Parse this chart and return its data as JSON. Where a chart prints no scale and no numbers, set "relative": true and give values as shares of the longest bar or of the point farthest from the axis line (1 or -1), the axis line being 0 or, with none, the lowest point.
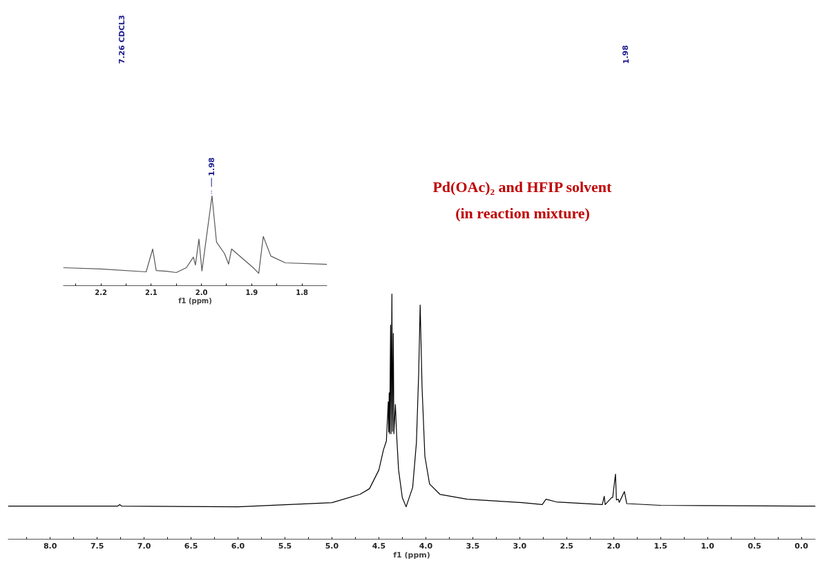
{
  "chart_data": [
    {
      "type": "line",
      "relative": true,
      "xlabel": "f1 (ppm)",
      "xlim": [
        8.45,
        -0.15
      ],
      "tick_labels": "x",
      "grid": false,
      "xticks": [
        {
          "value": 8.25,
          "label": null
        },
        {
          "value": 8,
          "label": "8.0"
        },
        {
          "value": 7.75,
          "label": null
        },
        {
          "value": 7.5,
          "label": "7.5"
        },
        {
          "value": 7.25,
          "label": null
        },
        {
          "value": 7,
          "label": "7.0"
        },
        {
          "value": 6.75,
          "label": null
        },
        {
          "value": 6.5,
          "label": "6.5"
        },
        {
          "value": 6.25,
          "label": null
        },
        {
          "value": 6,
          "label": "6.0"
        },
        {
          "value": 5.75,
          "label": null
        },
        {
          "value": 5.5,
          "label": "5.5"
        },
        {
          "value": 5.25,
          "label": null
        },
        {
          "value": 5,
          "label": "5.0"
        },
        {
          "value": 4.75,
          "label": null
        },
        {
          "value": 4.5,
          "label": "4.5"
        },
        {
          "value": 4.25,
          "label": null
        },
        {
          "value": 4,
          "label": "4.0"
        },
        {
          "value": 3.75,
          "label": null
        },
        {
          "value": 3.5,
          "label": "3.5"
        },
        {
          "value": 3.25,
          "label": null
        },
        {
          "value": 3,
          "label": "3.0"
        },
        {
          "value": 2.75,
          "label": null
        },
        {
          "value": 2.5,
          "label": "2.5"
        },
        {
          "value": 2.25,
          "label": null
        },
        {
          "value": 2,
          "label": "2.0"
        },
        {
          "value": 1.75,
          "label": null
        },
        {
          "value": 1.5,
          "label": "1.5"
        },
        {
          "value": 1.25,
          "label": null
        },
        {
          "value": 1,
          "label": "1.0"
        },
        {
          "value": 0.75,
          "label": null
        },
        {
          "value": 0.5,
          "label": "0.5"
        },
        {
          "value": 0.25,
          "label": null
        },
        {
          "value": 0,
          "label": "0.0"
        }
      ],
      "series": [
        {
          "color": "#000000",
          "x": [
            8.45,
            7.5,
            7.28,
            7.26,
            7.24,
            6.0,
            5.0,
            4.7,
            4.6,
            4.5,
            4.45,
            4.42,
            4.4,
            4.395,
            4.39,
            4.385,
            4.375,
            4.37,
            4.361,
            4.355,
            4.346,
            4.34,
            4.324,
            4.31,
            4.29,
            4.25,
            4.21,
            4.14,
            4.1,
            4.076,
            4.06,
            4.04,
            4.01,
            3.96,
            3.85,
            3.56,
            2.97,
            2.76,
            2.72,
            2.61,
            2.12,
            2.1,
            2.09,
            2.02,
            2.01,
            1.98,
            1.97,
            1.95,
            1.94,
            1.885,
            1.86,
            1.5,
            1.0,
            0.0,
            -0.15
          ],
          "values": [
            0.135,
            0.135,
            0.135,
            0.141,
            0.135,
            0.132,
            0.149,
            0.183,
            0.206,
            0.282,
            0.366,
            0.4,
            0.56,
            0.437,
            0.597,
            0.43,
            0.873,
            0.43,
            1.0,
            0.44,
            0.839,
            0.43,
            0.549,
            0.42,
            0.282,
            0.169,
            0.132,
            0.211,
            0.394,
            0.676,
            0.955,
            0.62,
            0.338,
            0.225,
            0.183,
            0.163,
            0.149,
            0.141,
            0.163,
            0.152,
            0.141,
            0.175,
            0.141,
            0.17,
            0.17,
            0.265,
            0.16,
            0.163,
            0.15,
            0.194,
            0.145,
            0.138,
            0.137,
            0.135,
            0.135
          ]
        }
      ],
      "annotations": [
        "7.26 CDCL3",
        "1.98",
        "Pd(OAc)₂ and HFIP solvent",
        "(in reaction mixture)"
      ]
    },
    {
      "type": "line",
      "relative": true,
      "xlabel": "f1 (ppm)",
      "xlim": [
        2.275,
        1.75
      ],
      "tick_labels": "x",
      "grid": false,
      "xticks": [
        {
          "value": 2.25,
          "label": null
        },
        {
          "value": 2.2,
          "label": "2.2"
        },
        {
          "value": 2.15,
          "label": null
        },
        {
          "value": 2.1,
          "label": "2.1"
        },
        {
          "value": 2.05,
          "label": null
        },
        {
          "value": 2.0,
          "label": "2.0"
        },
        {
          "value": 1.95,
          "label": null
        },
        {
          "value": 1.9,
          "label": "1.9"
        },
        {
          "value": 1.85,
          "label": null
        },
        {
          "value": 1.8,
          "label": "1.8"
        }
      ],
      "series": [
        {
          "color": "#555555",
          "x": [
            2.275,
            2.2,
            2.11,
            2.097,
            2.09,
            2.07,
            2.05,
            2.03,
            2.016,
            2.012,
            2.005,
            1.999,
            1.979,
            1.97,
            1.954,
            1.946,
            1.94,
            1.897,
            1.886,
            1.877,
            1.862,
            1.833,
            1.75
          ],
          "values": [
            0.2,
            0.185,
            0.154,
            0.408,
            0.169,
            0.16,
            0.146,
            0.2,
            0.318,
            0.23,
            0.518,
            0.164,
            1.0,
            0.485,
            0.356,
            0.24,
            0.408,
            0.2,
            0.138,
            0.548,
            0.33,
            0.254,
            0.238
          ]
        }
      ],
      "annotations": [
        {
          "text": "1.98",
          "x": 1.98,
          "y": 1.0
        }
      ]
    }
  ]
}
